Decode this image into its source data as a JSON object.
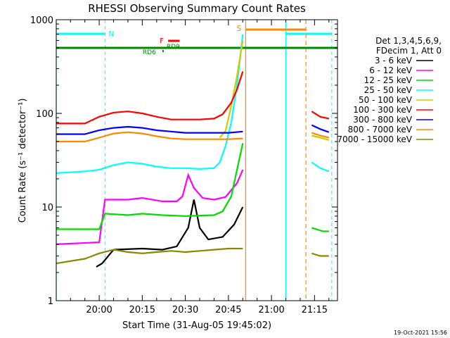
{
  "chart_data": {
    "type": "line",
    "title": "RHESSI Observing Summary Count Rates",
    "xlabel": "Start Time (31-Aug-05 19:45:02)",
    "ylabel": "Count Rate (s⁻¹ detector⁻¹)",
    "y_scale": "log",
    "ylim": [
      1,
      1000
    ],
    "xlim": [
      "19:45:02",
      "21:23:00"
    ],
    "x_ticks": [
      "20:00",
      "20:15",
      "20:30",
      "20:45",
      "21:00",
      "21:15"
    ],
    "y_ticks": [
      "1",
      "10",
      "100",
      "1000"
    ],
    "grid": false,
    "legend": {
      "position": "right",
      "header": [
        "Det 1,3,4,5,6,9,",
        "FDecim 1, Att 0"
      ]
    },
    "series": [
      {
        "name": "3 - 6 keV",
        "color": "#000000",
        "x": [
          "19:59",
          "20:01",
          "20:05",
          "20:15",
          "20:22",
          "20:27",
          "20:31",
          "20:33",
          "20:35",
          "20:38",
          "20:43",
          "20:47",
          "20:50"
        ],
        "y": [
          2.3,
          2.5,
          3.5,
          3.6,
          3.5,
          3.8,
          6.0,
          12.0,
          6.0,
          4.5,
          4.8,
          6.5,
          10.0
        ],
        "post_x": [],
        "post_y": []
      },
      {
        "name": "6 - 12 keV",
        "color": "#ff00ff",
        "x": [
          "19:45",
          "20:00",
          "20:02",
          "20:10",
          "20:15",
          "20:22",
          "20:27",
          "20:29",
          "20:31",
          "20:33",
          "20:36",
          "20:40",
          "20:44",
          "20:48",
          "20:50"
        ],
        "y": [
          4.0,
          4.2,
          12.0,
          12.0,
          12.5,
          11.5,
          11.5,
          13.0,
          22.0,
          16.0,
          12.5,
          12.0,
          12.8,
          18.0,
          25.0
        ],
        "post_x": [],
        "post_y": []
      },
      {
        "name": "12 - 25 keV",
        "color": "#00dd00",
        "x": [
          "19:45",
          "20:00",
          "20:02",
          "20:10",
          "20:15",
          "20:22",
          "20:30",
          "20:40",
          "20:43",
          "20:46",
          "20:48",
          "20:50"
        ],
        "y": [
          5.8,
          5.8,
          8.5,
          8.2,
          8.5,
          8.2,
          8.0,
          8.2,
          9.0,
          13.0,
          25.0,
          48.0
        ],
        "post_x": [
          "21:14",
          "21:18",
          "21:20"
        ],
        "post_y": [
          6.0,
          5.5,
          5.5
        ]
      },
      {
        "name": "25 - 50 keV",
        "color": "#00ffff",
        "x": [
          "19:45",
          "19:55",
          "20:00",
          "20:05",
          "20:10",
          "20:15",
          "20:20",
          "20:25",
          "20:30",
          "20:35",
          "20:40",
          "20:42",
          "20:44",
          "20:46",
          "20:48",
          "20:50"
        ],
        "y": [
          23,
          24,
          25,
          28,
          30,
          29,
          27,
          26,
          26,
          25.5,
          26,
          30,
          45,
          80,
          200,
          700
        ],
        "post_x": [
          "21:14",
          "21:17",
          "21:20"
        ],
        "post_y": [
          30,
          26,
          24
        ]
      },
      {
        "name": "50 - 100 keV",
        "color": "#cccc00",
        "x": [
          "20:42",
          "20:44",
          "20:46",
          "20:48",
          "20:50"
        ],
        "y": [
          55,
          65,
          120,
          250,
          600
        ],
        "post_x": [
          "21:14",
          "21:17",
          "21:20"
        ],
        "post_y": [
          58,
          55,
          52
        ]
      },
      {
        "name": "100 - 300 keV",
        "color": "#ff0000",
        "x": [
          "19:45",
          "19:55",
          "20:00",
          "20:05",
          "20:10",
          "20:15",
          "20:20",
          "20:25",
          "20:30",
          "20:35",
          "20:40",
          "20:43",
          "20:46",
          "20:48",
          "20:50"
        ],
        "y": [
          78,
          78,
          92,
          102,
          105,
          100,
          92,
          86,
          86,
          86,
          88,
          98,
          130,
          180,
          280
        ],
        "post_x": [
          "21:14",
          "21:17",
          "21:20"
        ],
        "post_y": [
          105,
          92,
          88
        ]
      },
      {
        "name": "300 - 800 keV",
        "color": "#0000ff",
        "x": [
          "19:45",
          "19:55",
          "20:00",
          "20:05",
          "20:10",
          "20:15",
          "20:20",
          "20:25",
          "20:30",
          "20:35",
          "20:40",
          "20:45",
          "20:50"
        ],
        "y": [
          60,
          60,
          66,
          70,
          72,
          70,
          66,
          64,
          62,
          62,
          62,
          62,
          64
        ],
        "post_x": [
          "21:14",
          "21:17",
          "21:20"
        ],
        "post_y": [
          75,
          68,
          63
        ]
      },
      {
        "name": "800 - 7000 keV",
        "color": "#ff8800",
        "x": [
          "19:45",
          "19:55",
          "20:00",
          "20:05",
          "20:10",
          "20:15",
          "20:20",
          "20:25",
          "20:30",
          "20:35",
          "20:40",
          "20:45",
          "20:50"
        ],
        "y": [
          50,
          50,
          55,
          61,
          63,
          61,
          57,
          54,
          53,
          53,
          53,
          53,
          54
        ],
        "post_x": [
          "21:14",
          "21:17",
          "21:20"
        ],
        "post_y": [
          62,
          58,
          55
        ]
      },
      {
        "name": "7000 - 15000 keV",
        "color": "#888800",
        "x": [
          "19:45",
          "19:55",
          "20:00",
          "20:05",
          "20:10",
          "20:15",
          "20:20",
          "20:25",
          "20:30",
          "20:35",
          "20:40",
          "20:45",
          "20:50"
        ],
        "y": [
          2.5,
          2.8,
          3.2,
          3.5,
          3.3,
          3.2,
          3.3,
          3.4,
          3.3,
          3.4,
          3.5,
          3.6,
          3.6
        ],
        "post_x": [
          "21:14",
          "21:17",
          "21:20"
        ],
        "post_y": [
          3.2,
          3.0,
          3.0
        ]
      }
    ],
    "annotations": {
      "night_label": "N",
      "saa_label": "S",
      "flare_label": "F",
      "rd_labels": [
        "RD6",
        "RD9"
      ],
      "night_color": "#00ffff",
      "saa_color": "#ff8800",
      "flare_color": "#ff0000",
      "attenuator_color": "#008800",
      "night_intervals": [
        [
          "19:45:02",
          "20:02"
        ],
        [
          "21:05",
          "21:21"
        ]
      ],
      "saa_interval": [
        "20:51",
        "21:12"
      ],
      "flare_interval": [
        "20:24",
        "20:28"
      ],
      "decimation_line_level": 500,
      "rd9_time": "20:22",
      "rd6_time": "20:22"
    },
    "timestamp": "19-Oct-2021 15:56"
  }
}
